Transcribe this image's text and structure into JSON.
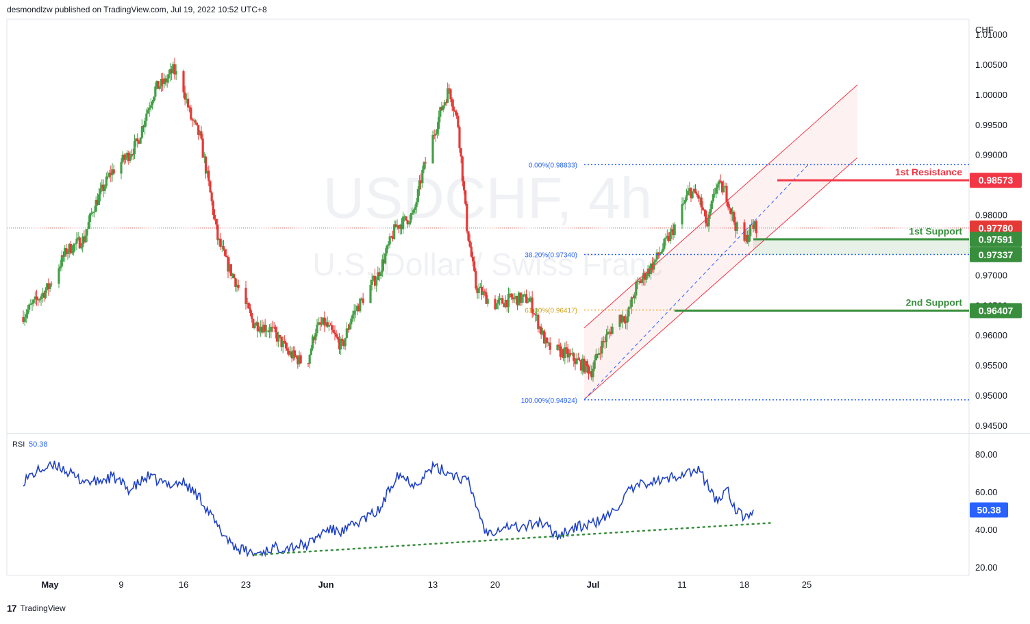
{
  "header": {
    "published": "desmondlzw published on TradingView.com, Jul 19, 2022 10:52 UTC+8"
  },
  "footer": {
    "brand": "TradingView"
  },
  "colors": {
    "up": "#26a69a",
    "up_body": "#43a047",
    "down": "#e53935",
    "rsi": "#1e40c8",
    "resistance": "#f23645",
    "support": "#388e3c",
    "fib": "#2962ff",
    "fib_gold": "#f5a623",
    "channel": "#f23645"
  },
  "chart_data": [
    {
      "type": "candlestick",
      "symbol": "USDCHF, 4h",
      "description": "U.S. Dollar / Swiss Franc",
      "currency": "CHF",
      "ylim": [
        0.9425,
        1.0125
      ],
      "yticks": [
        1.01,
        1.005,
        1.0,
        0.995,
        0.99,
        0.98,
        0.97,
        0.965,
        0.96,
        0.955,
        0.95,
        0.945
      ],
      "ytick_labels": [
        "1.01000",
        "1.00500",
        "1.00000",
        "0.99500",
        "0.99000",
        "0.98000",
        "0.97000",
        "0.96500",
        "0.96000",
        "0.95500",
        "0.95000",
        "0.94500"
      ],
      "x_ticks": [
        "May",
        "9",
        "16",
        "23",
        "Jun",
        "13",
        "20",
        "Jul",
        "11",
        "18",
        "25"
      ],
      "series_anchors": [
        [
          "Apr 28",
          0.963
        ],
        [
          "May 1",
          0.968
        ],
        [
          "May 3",
          0.974
        ],
        [
          "May 5",
          0.976
        ],
        [
          "May 6",
          0.981
        ],
        [
          "May 8",
          0.987
        ],
        [
          "May 10",
          0.99
        ],
        [
          "May 11",
          0.992
        ],
        [
          "May 12",
          0.997
        ],
        [
          "May 13",
          1.001
        ],
        [
          "May 14",
          1.002
        ],
        [
          "May 15",
          1.004
        ],
        [
          "May 16",
          1.002
        ],
        [
          "May 17",
          0.996
        ],
        [
          "May 18",
          0.993
        ],
        [
          "May 19",
          0.985
        ],
        [
          "May 20",
          0.976
        ],
        [
          "May 21",
          0.972
        ],
        [
          "May 22",
          0.969
        ],
        [
          "May 24",
          0.962
        ],
        [
          "May 26",
          0.961
        ],
        [
          "May 28",
          0.957
        ],
        [
          "May 30",
          0.955
        ],
        [
          "May 31",
          0.961
        ],
        [
          "Jun 1",
          0.962
        ],
        [
          "Jun 3",
          0.958
        ],
        [
          "Jun 4",
          0.963
        ],
        [
          "Jun 7",
          0.97
        ],
        [
          "Jun 9",
          0.978
        ],
        [
          "Jun 11",
          0.98
        ],
        [
          "Jun 12",
          0.987
        ],
        [
          "Jun 14",
          0.997
        ],
        [
          "Jun 15",
          1.001
        ],
        [
          "Jun 16",
          0.995
        ],
        [
          "Jun 17",
          0.978
        ],
        [
          "Jun 18",
          0.968
        ],
        [
          "Jun 20",
          0.965
        ],
        [
          "Jun 22",
          0.966
        ],
        [
          "Jun 24",
          0.966
        ],
        [
          "Jun 26",
          0.958
        ],
        [
          "Jun 28",
          0.957
        ],
        [
          "Jun 30",
          0.955
        ],
        [
          "Jul 1",
          0.954
        ],
        [
          "Jul 2",
          0.958
        ],
        [
          "Jul 4",
          0.963
        ],
        [
          "Jul 5",
          0.963
        ],
        [
          "Jul 6",
          0.968
        ],
        [
          "Jul 8",
          0.972
        ],
        [
          "Jul 10",
          0.977
        ],
        [
          "Jul 12",
          0.984
        ],
        [
          "Jul 13",
          0.983
        ],
        [
          "Jul 14",
          0.978
        ],
        [
          "Jul 15",
          0.985
        ],
        [
          "Jul 16",
          0.984
        ],
        [
          "Jul 17",
          0.979
        ],
        [
          "Jul 18",
          0.975
        ],
        [
          "Jul 19",
          0.978
        ]
      ],
      "last_price": {
        "value": 0.9778,
        "label": "0.97780"
      },
      "levels": [
        {
          "name": "1st Resistance",
          "value": 0.98573,
          "label": "0.98573",
          "kind": "resistance"
        },
        {
          "name": "1st Support",
          "value": 0.97591,
          "label": "0.97591",
          "kind": "support"
        },
        {
          "name": "",
          "value": 0.97337,
          "label": "0.97337",
          "kind": "support-zone"
        },
        {
          "name": "2nd Support",
          "value": 0.96407,
          "label": "0.96407",
          "kind": "support"
        }
      ],
      "fibonacci": [
        {
          "label": "0.00%(0.98833)",
          "value": 0.98833
        },
        {
          "label": "38.20%(0.97340)",
          "value": 0.9734
        },
        {
          "label": "61.80%(0.96417)",
          "value": 0.96417
        },
        {
          "label": "100.00%(0.94924)",
          "value": 0.94924
        }
      ]
    },
    {
      "type": "line",
      "name": "RSI",
      "title": "RSI",
      "current_value": "50.38",
      "ylim": [
        20,
        88
      ],
      "yticks": [
        80,
        60,
        40,
        20
      ],
      "ytick_labels": [
        "80.00",
        "60.00",
        "40.00",
        "20.00"
      ],
      "series_anchors": [
        [
          "Apr 28",
          66
        ],
        [
          "Apr 30",
          72
        ],
        [
          "May 2",
          74
        ],
        [
          "May 4",
          67
        ],
        [
          "May 6",
          65
        ],
        [
          "May 8",
          68
        ],
        [
          "May 10",
          61
        ],
        [
          "May 12",
          68
        ],
        [
          "May 14",
          64
        ],
        [
          "May 16",
          65
        ],
        [
          "May 18",
          56
        ],
        [
          "May 20",
          40
        ],
        [
          "May 22",
          30
        ],
        [
          "May 24",
          27
        ],
        [
          "May 26",
          30
        ],
        [
          "May 28",
          31
        ],
        [
          "May 30",
          32
        ],
        [
          "Jun 1",
          40
        ],
        [
          "Jun 3",
          39
        ],
        [
          "Jun 5",
          45
        ],
        [
          "Jun 7",
          50
        ],
        [
          "Jun 9",
          70
        ],
        [
          "Jun 11",
          64
        ],
        [
          "Jun 13",
          73
        ],
        [
          "Jun 15",
          70
        ],
        [
          "Jun 17",
          65
        ],
        [
          "Jun 19",
          38
        ],
        [
          "Jun 21",
          42
        ],
        [
          "Jun 23",
          41
        ],
        [
          "Jun 25",
          44
        ],
        [
          "Jun 27",
          37
        ],
        [
          "Jun 29",
          41
        ],
        [
          "Jul 1",
          43
        ],
        [
          "Jul 3",
          48
        ],
        [
          "Jul 5",
          60
        ],
        [
          "Jul 7",
          65
        ],
        [
          "Jul 9",
          66
        ],
        [
          "Jul 11",
          70
        ],
        [
          "Jul 13",
          71
        ],
        [
          "Jul 15",
          54
        ],
        [
          "Jul 16",
          63
        ],
        [
          "Jul 17",
          50
        ],
        [
          "Jul 18",
          46
        ],
        [
          "Jul 19",
          50.4
        ]
      ],
      "trendline": [
        [
          "May 24",
          26.5
        ],
        [
          "Jul 21",
          43.5
        ]
      ]
    }
  ]
}
